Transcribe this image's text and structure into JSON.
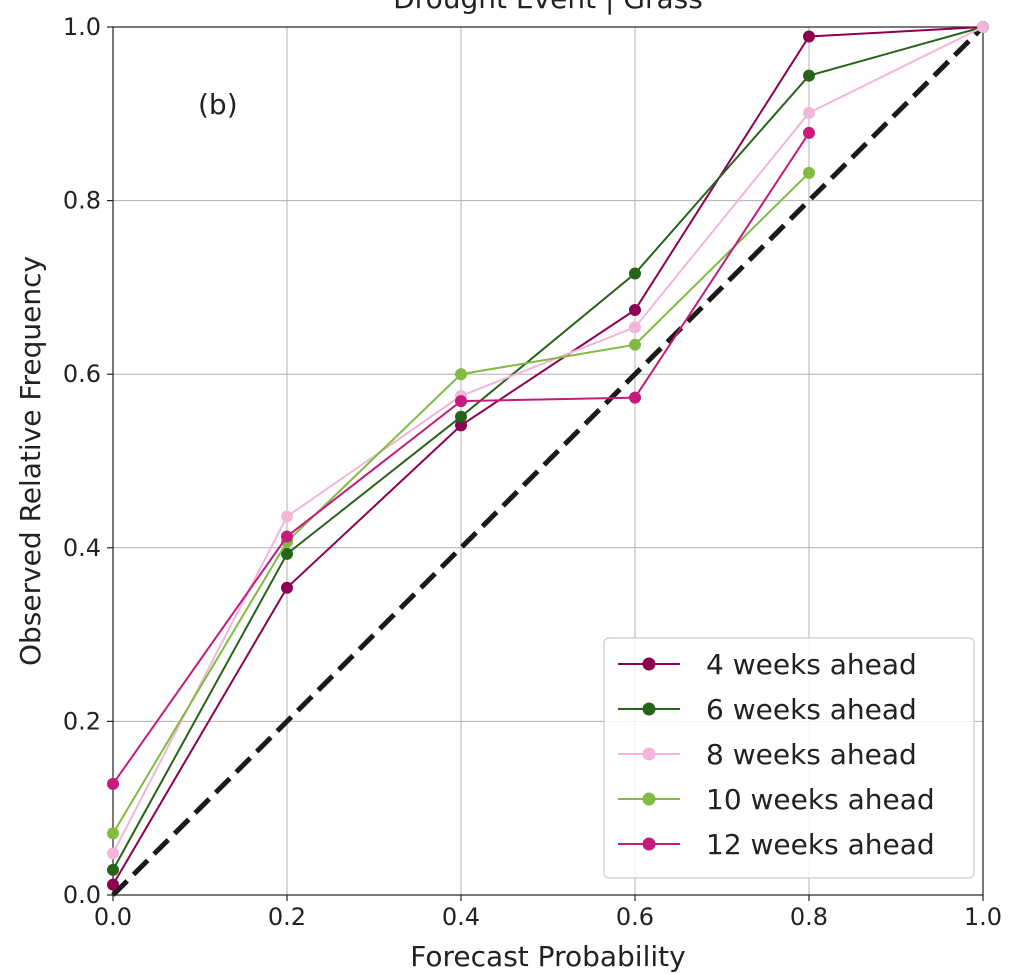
{
  "chart_data": {
    "type": "line",
    "title": "Drought Event | Grass",
    "annotation": "(b)",
    "xlabel": "Forecast Probability",
    "ylabel": "Observed Relative Frequency",
    "xlim": [
      0.0,
      1.0
    ],
    "ylim": [
      0.0,
      1.0
    ],
    "xticks": [
      "0.0",
      "0.2",
      "0.4",
      "0.6",
      "0.8",
      "1.0"
    ],
    "yticks": [
      "0.0",
      "0.2",
      "0.4",
      "0.6",
      "0.8",
      "1.0"
    ],
    "grid": true,
    "legend_position": "bottom-right",
    "reference_line": {
      "style": "dashed",
      "color": "#1a1a1a",
      "x": [
        0.0,
        1.0
      ],
      "y": [
        0.0,
        1.0
      ]
    },
    "series": [
      {
        "name": "4 weeks ahead",
        "color": "#8e0152",
        "x": [
          0.0,
          0.2,
          0.4,
          0.6,
          0.8,
          1.0
        ],
        "y": [
          0.012,
          0.354,
          0.541,
          0.674,
          0.989,
          1.0
        ]
      },
      {
        "name": "6 weeks ahead",
        "color": "#276419",
        "x": [
          0.0,
          0.2,
          0.4,
          0.6,
          0.8,
          1.0
        ],
        "y": [
          0.029,
          0.393,
          0.551,
          0.716,
          0.944,
          1.0
        ]
      },
      {
        "name": "8 weeks ahead",
        "color": "#f1b6da",
        "x": [
          0.0,
          0.2,
          0.4,
          0.6,
          0.8,
          1.0
        ],
        "y": [
          0.048,
          0.436,
          0.575,
          0.654,
          0.901,
          1.0
        ]
      },
      {
        "name": "10 weeks ahead",
        "color": "#7fbc41",
        "x": [
          0.0,
          0.2,
          0.4,
          0.6,
          0.8
        ],
        "y": [
          0.071,
          0.407,
          0.6,
          0.634,
          0.832
        ]
      },
      {
        "name": "12 weeks ahead",
        "color": "#c51b7d",
        "x": [
          0.0,
          0.2,
          0.4,
          0.6,
          0.8
        ],
        "y": [
          0.128,
          0.413,
          0.569,
          0.573,
          0.878
        ]
      }
    ]
  }
}
